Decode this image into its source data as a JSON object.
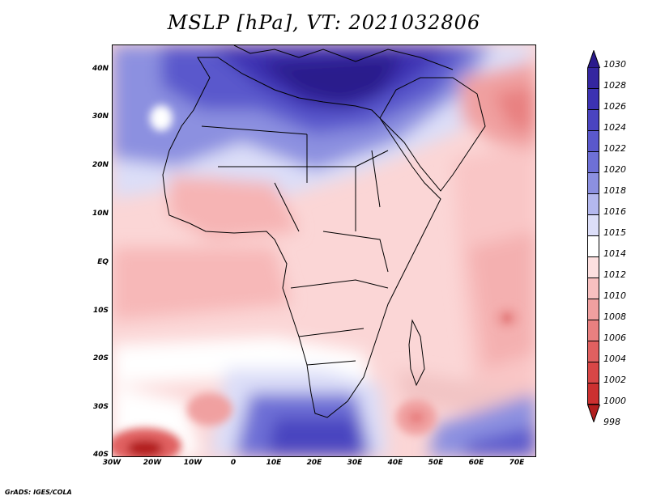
{
  "title": "MSLP [hPa], VT: 2021032806",
  "credit": "GrADS: IGES/COLA",
  "map": {
    "lat_labels": [
      "40N",
      "30N",
      "20N",
      "10N",
      "EQ",
      "10S",
      "20S",
      "30S",
      "40S"
    ],
    "lon_labels": [
      "30W",
      "20W",
      "10W",
      "0",
      "10E",
      "20E",
      "30E",
      "40E",
      "50E",
      "60E",
      "70E"
    ]
  },
  "colorbar": {
    "levels": [
      "1030",
      "1028",
      "1026",
      "1024",
      "1022",
      "1020",
      "1018",
      "1016",
      "1015",
      "1014",
      "1012",
      "1010",
      "1008",
      "1006",
      "1004",
      "1002",
      "1000",
      "998"
    ],
    "colors": [
      "#2a1a8c",
      "#3426a0",
      "#3c32b2",
      "#4a44c0",
      "#5a58cc",
      "#6e70d6",
      "#8c90e0",
      "#b4b8ee",
      "#dcdef8",
      "#ffffff",
      "#fde0e0",
      "#f8c0c0",
      "#f0a0a0",
      "#e88080",
      "#e06060",
      "#d84646",
      "#cc3030",
      "#b21e1e"
    ]
  },
  "colors": {
    "high": "#2a1a8c",
    "neutral": "#ffffff",
    "low": "#b21e1e"
  }
}
